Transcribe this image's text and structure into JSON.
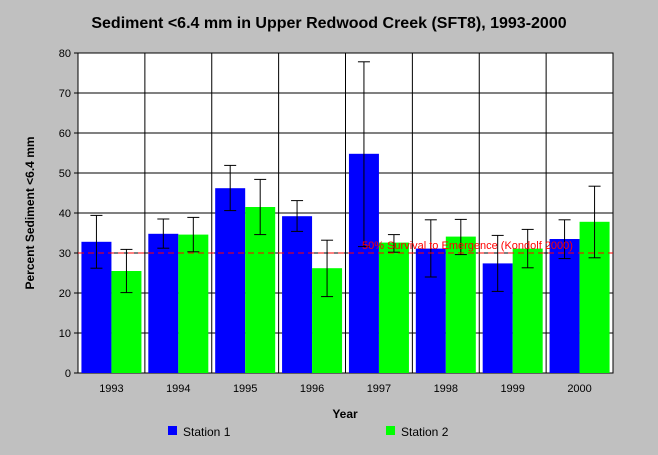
{
  "chart_data": {
    "type": "bar",
    "title": "Sediment <6.4 mm in Upper Redwood Creek (SFT8), 1993-2000",
    "xlabel": "Year",
    "ylabel": "Percent Sediment <6.4 mm",
    "ylim": [
      0,
      80
    ],
    "yticks": [
      0,
      10,
      20,
      30,
      40,
      50,
      60,
      70,
      80
    ],
    "grid": true,
    "legend": "bottom",
    "categories": [
      "1993",
      "1994",
      "1995",
      "1996",
      "1997",
      "1998",
      "1999",
      "2000"
    ],
    "series": [
      {
        "name": "Station 1",
        "color": "#0000ff",
        "values": [
          32.8,
          34.8,
          46.2,
          39.2,
          54.8,
          31.1,
          27.4,
          33.5
        ],
        "error_low": [
          26.2,
          31.2,
          40.6,
          35.4,
          31.6,
          24.0,
          20.4,
          28.6
        ],
        "error_high": [
          39.4,
          38.5,
          51.9,
          43.1,
          77.8,
          38.3,
          34.4,
          38.3
        ]
      },
      {
        "name": "Station 2",
        "color": "#00ff00",
        "values": [
          25.5,
          34.6,
          41.5,
          26.2,
          32.6,
          34.1,
          31.1,
          37.8
        ],
        "error_low": [
          20.1,
          30.3,
          34.6,
          19.1,
          30.2,
          29.6,
          26.3,
          28.8
        ],
        "error_high": [
          30.9,
          38.9,
          48.4,
          33.2,
          34.6,
          38.4,
          35.9,
          46.7
        ]
      }
    ],
    "reference_line": {
      "value": 30,
      "label": "50% Survival to Emergence (Kondolf 2000)",
      "color": "#ff0000"
    }
  }
}
